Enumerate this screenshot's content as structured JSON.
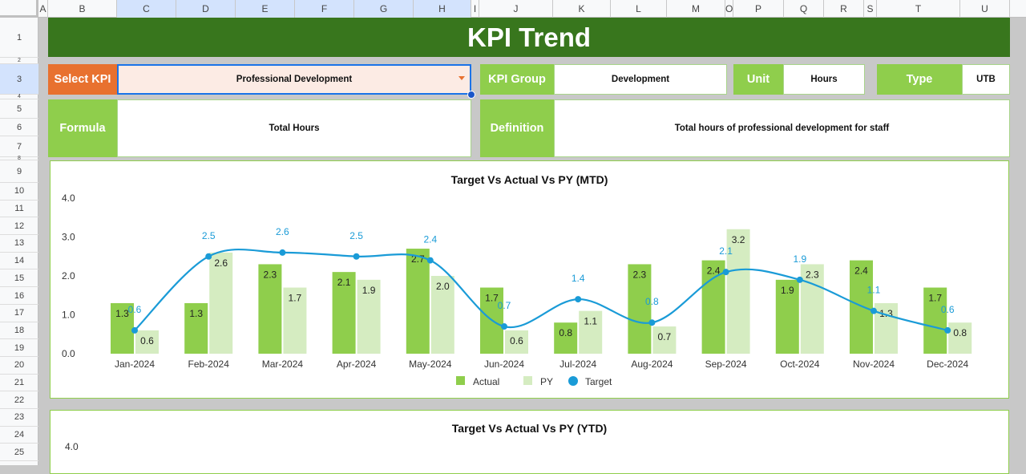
{
  "sheet": {
    "columns": [
      "A",
      "B",
      "C",
      "D",
      "E",
      "F",
      "G",
      "H",
      "I",
      "J",
      "K",
      "L",
      "M",
      "O",
      "P",
      "Q",
      "R",
      "S",
      "T",
      "U"
    ],
    "rows": [
      "1",
      "2",
      "3",
      "4",
      "5",
      "6",
      "7",
      "8",
      "9",
      "10",
      "11",
      "12",
      "13",
      "14",
      "15",
      "16",
      "17",
      "18",
      "19",
      "20",
      "21",
      "22",
      "23",
      "24",
      "25"
    ]
  },
  "header": {
    "title": "KPI Trend"
  },
  "kpi": {
    "select_label": "Select KPI",
    "selected": "Professional Development",
    "group_label": "KPI Group",
    "group": "Development",
    "unit_label": "Unit",
    "unit": "Hours",
    "type_label": "Type",
    "type": "UTB",
    "formula_label": "Formula",
    "formula": "Total Hours",
    "definition_label": "Definition",
    "definition": "Total hours of professional development for staff"
  },
  "colors": {
    "actual": "#8fce4c",
    "py": "#d5ecc1",
    "target": "#1a9bd7",
    "header": "#38761d",
    "select": "#e8712f"
  },
  "chart_data": [
    {
      "type": "bar",
      "title": "Target Vs Actual Vs PY (MTD)",
      "categories": [
        "Jan-2024",
        "Feb-2024",
        "Mar-2024",
        "Apr-2024",
        "May-2024",
        "Jun-2024",
        "Jul-2024",
        "Aug-2024",
        "Sep-2024",
        "Oct-2024",
        "Nov-2024",
        "Dec-2024"
      ],
      "series": [
        {
          "name": "Actual",
          "type": "bar",
          "values": [
            1.3,
            1.3,
            2.3,
            2.1,
            2.7,
            1.7,
            0.8,
            2.3,
            2.4,
            1.9,
            2.4,
            1.7
          ]
        },
        {
          "name": "PY",
          "type": "bar",
          "values": [
            0.6,
            2.6,
            1.7,
            1.9,
            2.0,
            0.6,
            1.1,
            0.7,
            3.2,
            2.3,
            1.3,
            0.8
          ]
        },
        {
          "name": "Target",
          "type": "line",
          "values": [
            0.6,
            2.5,
            2.6,
            2.5,
            2.4,
            0.7,
            1.4,
            0.8,
            2.1,
            1.9,
            1.1,
            0.6
          ]
        }
      ],
      "yticks": [
        "0.0",
        "1.0",
        "2.0",
        "3.0",
        "4.0"
      ],
      "ylim": [
        0,
        4
      ],
      "legend": "bottom"
    },
    {
      "type": "bar",
      "title": "Target Vs Actual Vs PY (YTD)",
      "yticks": [
        "4.0"
      ]
    }
  ]
}
